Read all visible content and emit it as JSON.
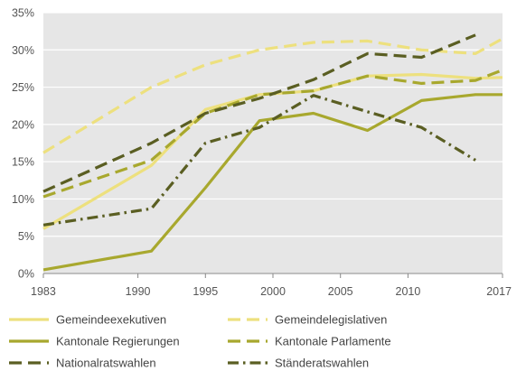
{
  "chart_data": {
    "type": "line",
    "title": "",
    "xlabel": "",
    "ylabel": "",
    "xlim": [
      1983,
      2017
    ],
    "ylim": [
      0,
      35
    ],
    "x_ticks": [
      1983,
      1990,
      1995,
      2000,
      2005,
      2010,
      2017
    ],
    "x_tick_labels": [
      "1983",
      "1990",
      "1995",
      "2000",
      "2005",
      "2010",
      "2017"
    ],
    "y_ticks": [
      0,
      5,
      10,
      15,
      20,
      25,
      30,
      35
    ],
    "y_tick_labels": [
      "0%",
      "5%",
      "10%",
      "15%",
      "20%",
      "25%",
      "30%",
      "35%"
    ],
    "grid": "horizontal",
    "legend_position": "bottom",
    "series": [
      {
        "name": "Gemeindeexekutiven",
        "color": "#ede07e",
        "dash": "solid",
        "points": [
          [
            1983,
            6.0
          ],
          [
            1991,
            14.5
          ],
          [
            1995,
            22.0
          ],
          [
            1999,
            24.0
          ],
          [
            2003,
            24.5
          ],
          [
            2007,
            26.5
          ],
          [
            2011,
            26.7
          ],
          [
            2015,
            26.2
          ],
          [
            2017,
            26.3
          ]
        ]
      },
      {
        "name": "Gemeindelegislativen",
        "color": "#ede07e",
        "dash": "dashed",
        "points": [
          [
            1983,
            16.2
          ],
          [
            1991,
            25.0
          ],
          [
            1995,
            28.0
          ],
          [
            1999,
            30.0
          ],
          [
            2003,
            31.0
          ],
          [
            2007,
            31.2
          ],
          [
            2011,
            30.0
          ],
          [
            2015,
            29.5
          ],
          [
            2017,
            31.5
          ]
        ]
      },
      {
        "name": "Kantonale Regierungen",
        "color": "#a8a82e",
        "dash": "solid",
        "points": [
          [
            1983,
            0.5
          ],
          [
            1991,
            3.0
          ],
          [
            1995,
            11.5
          ],
          [
            1999,
            20.5
          ],
          [
            2003,
            21.5
          ],
          [
            2007,
            19.2
          ],
          [
            2011,
            23.2
          ],
          [
            2015,
            24.0
          ],
          [
            2017,
            24.0
          ]
        ]
      },
      {
        "name": "Kantonale Parlamente",
        "color": "#a8a82e",
        "dash": "dashed",
        "points": [
          [
            1983,
            10.3
          ],
          [
            1991,
            15.2
          ],
          [
            1995,
            21.5
          ],
          [
            1999,
            24.0
          ],
          [
            2003,
            24.5
          ],
          [
            2007,
            26.5
          ],
          [
            2011,
            25.5
          ],
          [
            2015,
            25.9
          ],
          [
            2017,
            27.3
          ]
        ]
      },
      {
        "name": "Nationalratswahlen",
        "color": "#5a5e22",
        "dash": "dashed",
        "points": [
          [
            1983,
            11.0
          ],
          [
            1991,
            17.5
          ],
          [
            1995,
            21.5
          ],
          [
            1999,
            23.5
          ],
          [
            2003,
            26.0
          ],
          [
            2007,
            29.5
          ],
          [
            2011,
            29.0
          ],
          [
            2015,
            32.0
          ]
        ]
      },
      {
        "name": "Ständeratswahlen",
        "color": "#5a5e22",
        "dash": "dashdot",
        "points": [
          [
            1983,
            6.5
          ],
          [
            1991,
            8.7
          ],
          [
            1995,
            17.5
          ],
          [
            1999,
            19.6
          ],
          [
            2003,
            23.9
          ],
          [
            2007,
            21.7
          ],
          [
            2011,
            19.6
          ],
          [
            2015,
            15.2
          ]
        ]
      }
    ]
  }
}
